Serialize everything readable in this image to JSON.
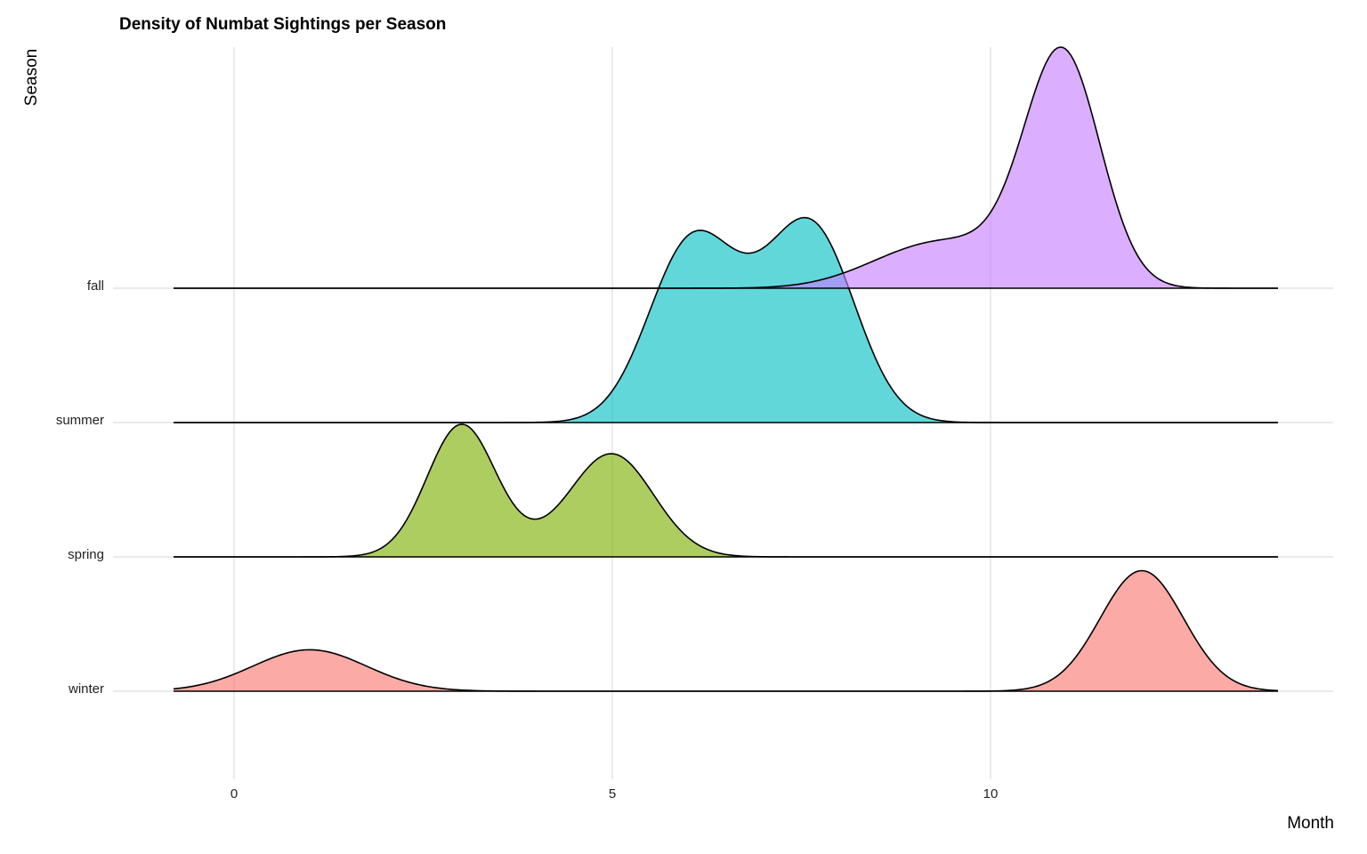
{
  "chart_data": {
    "type": "ridgeline",
    "title": "Density of Numbat Sightings per Season",
    "xlabel": "Month",
    "ylabel": "Season",
    "xlim": [
      -2.5,
      14.5
    ],
    "x_ticks": [
      0,
      5,
      10
    ],
    "x_range": [
      -0.8,
      13.8
    ],
    "grid": true,
    "legend": "none",
    "series": [
      {
        "name": "winter",
        "color": "#F8766D",
        "height_scale": 0.5,
        "components": [
          {
            "mean": 1.0,
            "sd": 0.75,
            "weight": 0.15
          },
          {
            "mean": 12.0,
            "sd": 0.55,
            "weight": 0.32
          }
        ]
      },
      {
        "name": "spring",
        "color": "#7CAE00",
        "height_scale": 0.55,
        "components": [
          {
            "mean": 3.0,
            "sd": 0.45,
            "weight": 0.27
          },
          {
            "mean": 5.0,
            "sd": 0.55,
            "weight": 0.26
          },
          {
            "mean": 3.8,
            "sd": 0.8,
            "weight": 0.03
          }
        ]
      },
      {
        "name": "summer",
        "color": "#00BFC4",
        "height_scale": 0.85,
        "components": [
          {
            "mean": 6.0,
            "sd": 0.55,
            "weight": 0.26
          },
          {
            "mean": 7.7,
            "sd": 0.55,
            "weight": 0.27
          },
          {
            "mean": 6.9,
            "sd": 0.6,
            "weight": 0.12
          }
        ]
      },
      {
        "name": "fall",
        "color": "#C77CFF",
        "height_scale": 1.0,
        "components": [
          {
            "mean": 10.95,
            "sd": 0.5,
            "weight": 0.72
          },
          {
            "mean": 9.6,
            "sd": 0.8,
            "weight": 0.2
          },
          {
            "mean": 8.7,
            "sd": 0.7,
            "weight": 0.06
          }
        ]
      }
    ]
  }
}
